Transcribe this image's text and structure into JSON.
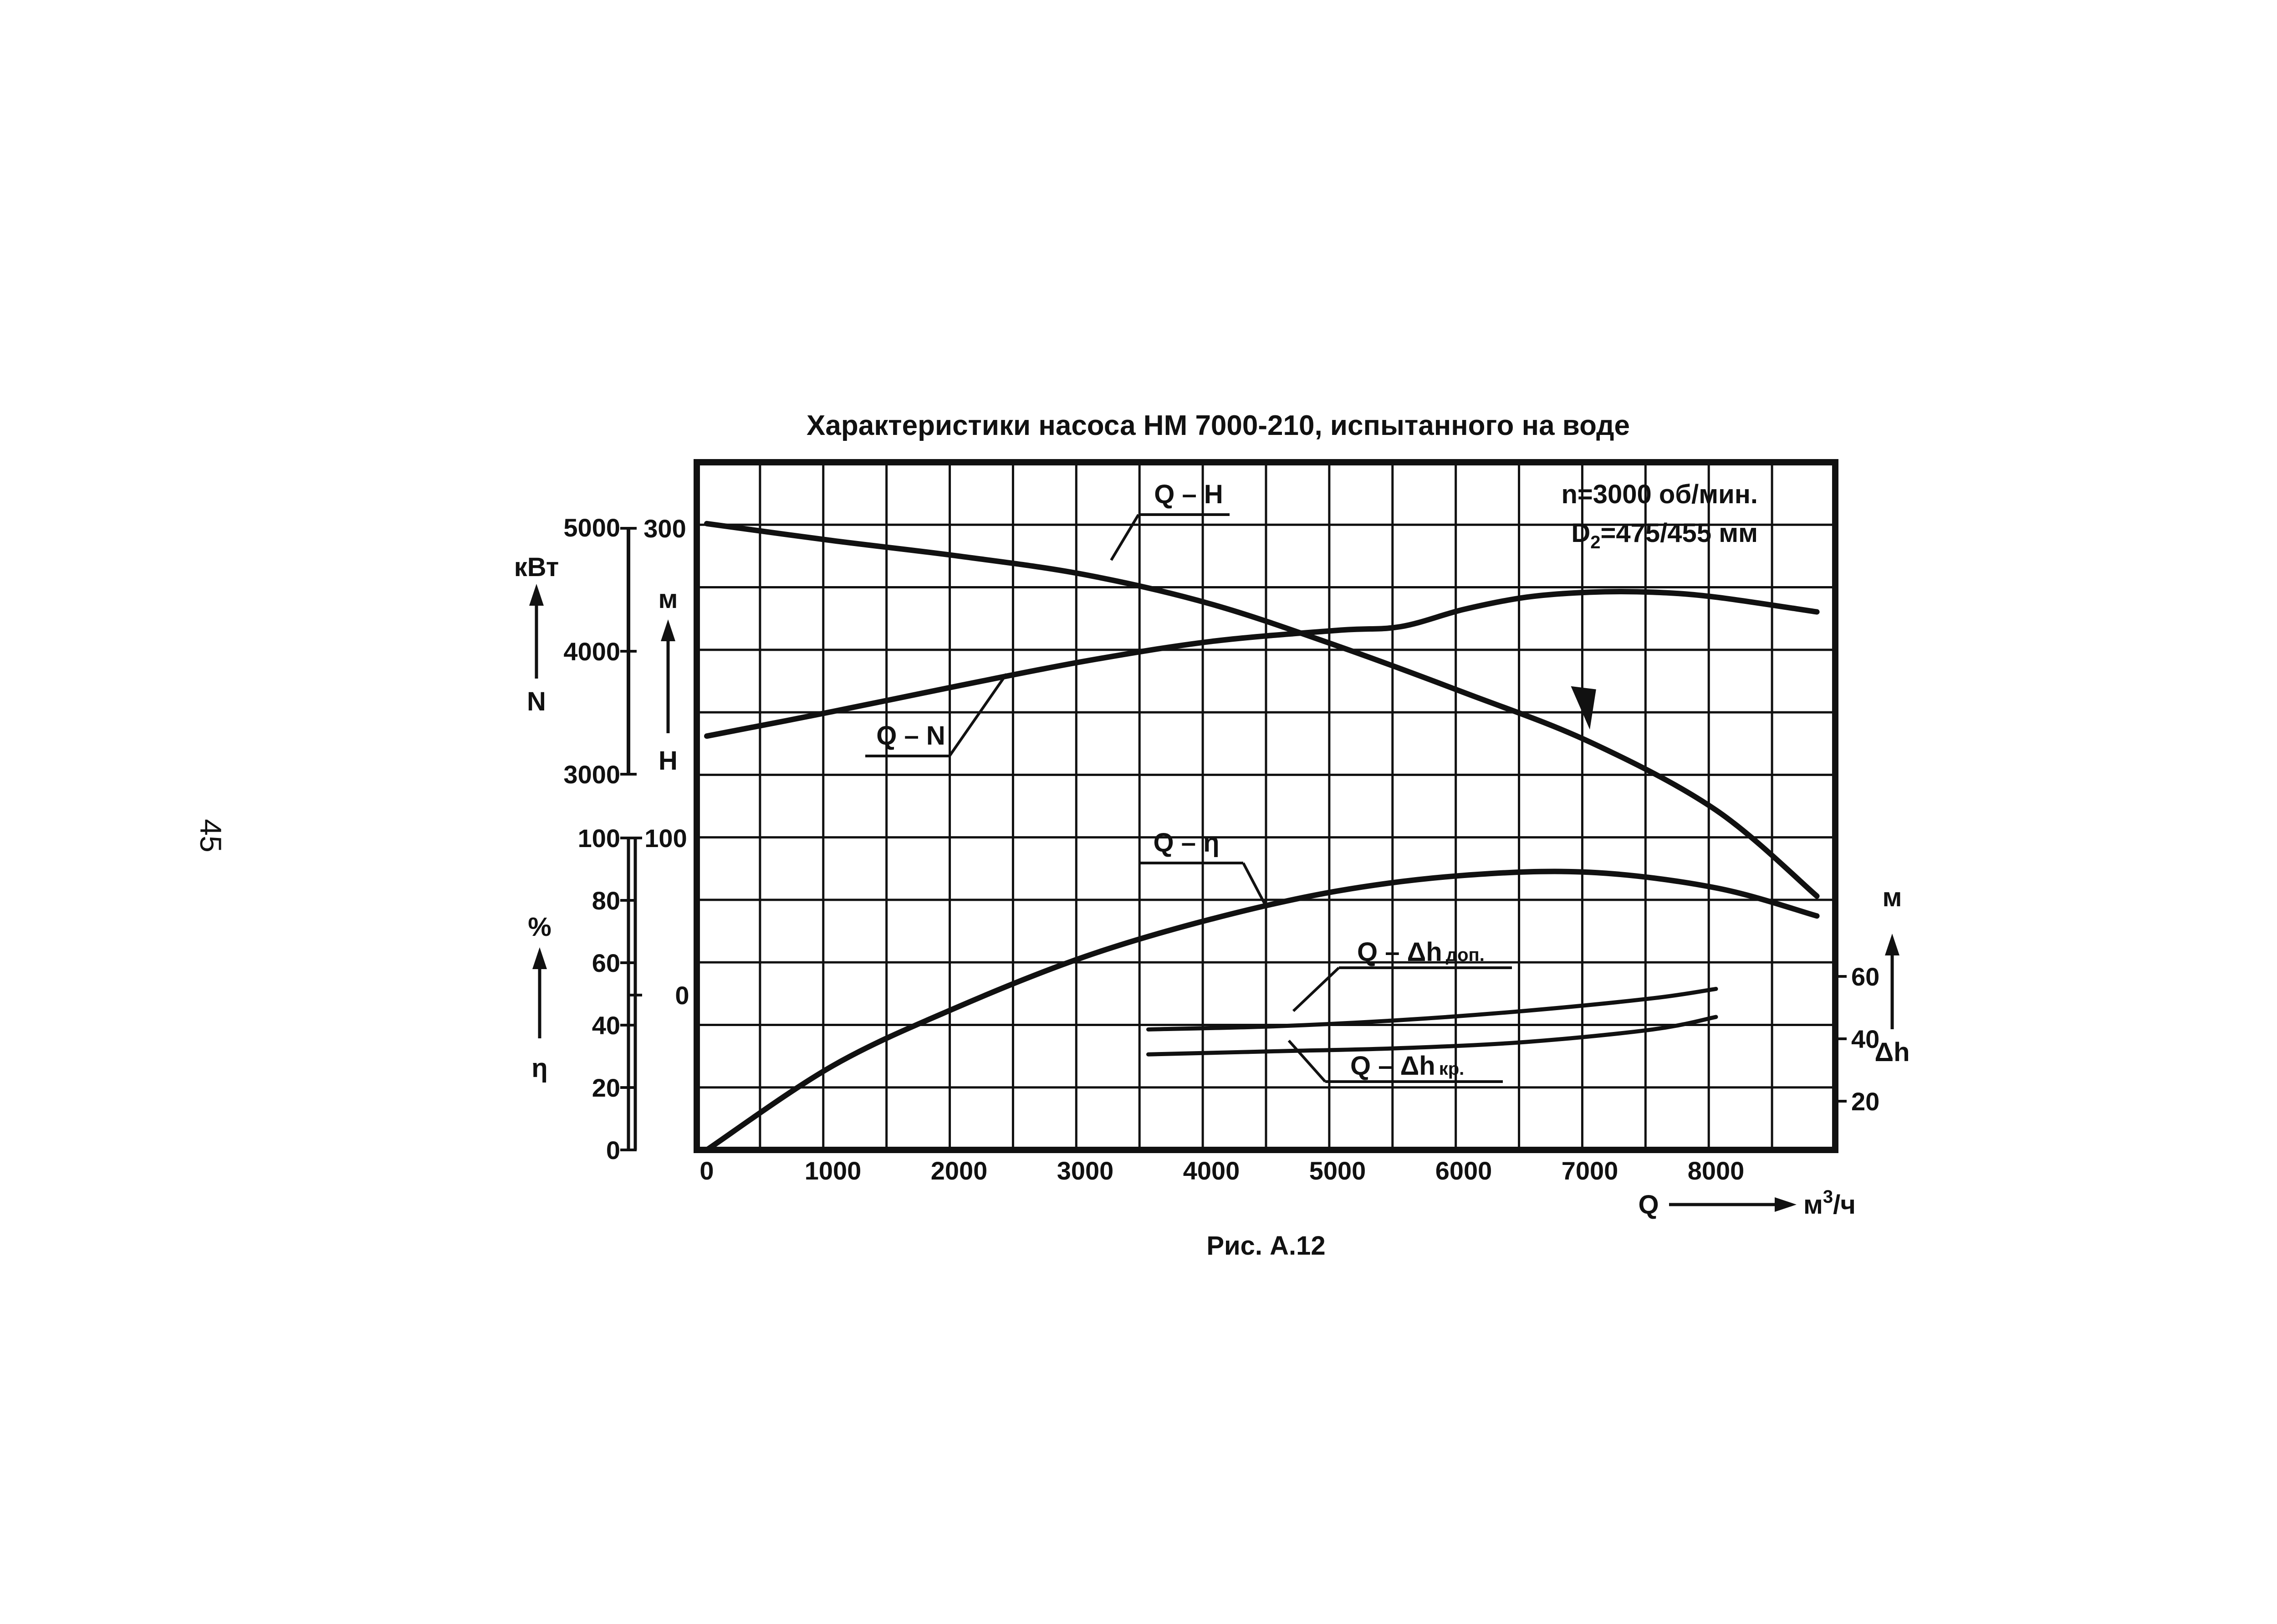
{
  "page_number": "45",
  "chart_data": {
    "type": "line",
    "title": "Характеристики насоса НМ 7000-210, испытанного на воде",
    "caption": "Рис. А.12",
    "annotation": {
      "line1": "n=3000 об/мин.",
      "line2_prefix": "D",
      "line2_sub": "2",
      "line2_suffix": "=475/455 мм"
    },
    "grid": true,
    "x_axis": {
      "label": "Q",
      "unit_prefix": "м",
      "unit_sup": "3",
      "unit_suffix": "/ч",
      "ticks": [
        "0",
        "1000",
        "2000",
        "3000",
        "4000",
        "5000",
        "6000",
        "7000",
        "8000"
      ],
      "range": [
        0,
        9000
      ]
    },
    "axes": {
      "N": {
        "unit": "кВт",
        "symbol": "N",
        "ticks": [
          "5000",
          "4000",
          "3000"
        ],
        "range": [
          3000,
          5000
        ]
      },
      "H": {
        "unit": "м",
        "symbol": "H",
        "ticks": [
          "300",
          "100",
          "0"
        ],
        "values": [
          300,
          100,
          0
        ]
      },
      "eta": {
        "unit": "%",
        "symbol": "η",
        "ticks": [
          "100",
          "80",
          "60",
          "40",
          "20",
          "0"
        ],
        "range": [
          0,
          100
        ]
      },
      "dh": {
        "unit": "м",
        "symbol": "Δh",
        "ticks": [
          "60",
          "40",
          "20"
        ],
        "range": [
          0,
          100
        ]
      }
    },
    "series": [
      {
        "key": "QH",
        "label": "Q – H",
        "axis": "H",
        "x": [
          0,
          1000,
          2000,
          3000,
          4000,
          5000,
          6000,
          7000,
          8000,
          8800
        ],
        "y": [
          303,
          292,
          282,
          270,
          251,
          224,
          194,
          162,
          118,
          63
        ]
      },
      {
        "key": "QN",
        "label": "Q – N",
        "axis": "N",
        "x": [
          0,
          1000,
          2000,
          3000,
          4000,
          5000,
          5500,
          6000,
          6500,
          7000,
          7500,
          8000,
          8800
        ],
        "y": [
          3310,
          3510,
          3720,
          3920,
          4080,
          4170,
          4200,
          4340,
          4440,
          4480,
          4480,
          4440,
          4320
        ]
      },
      {
        "key": "Qeta",
        "label": "Q – η",
        "axis": "eta",
        "x": [
          0,
          1000,
          2000,
          3000,
          4000,
          5000,
          6000,
          7000,
          8000,
          8800
        ],
        "y": [
          0,
          27,
          46,
          62,
          74,
          83,
          88,
          89,
          84,
          75
        ]
      },
      {
        "key": "Qdh_dop",
        "label_main": "Q – Δh",
        "label_sub": "доп.",
        "axis": "dh",
        "x": [
          3500,
          4500,
          5500,
          6500,
          7500,
          8000
        ],
        "y": [
          43,
          44,
          46,
          49,
          53,
          56
        ]
      },
      {
        "key": "Qdh_kr",
        "label_main": "Q – Δh",
        "label_sub": "кр.",
        "axis": "dh",
        "x": [
          3500,
          4500,
          5500,
          6500,
          7500,
          8000
        ],
        "y": [
          35,
          36,
          37,
          39,
          43,
          47
        ]
      }
    ]
  }
}
